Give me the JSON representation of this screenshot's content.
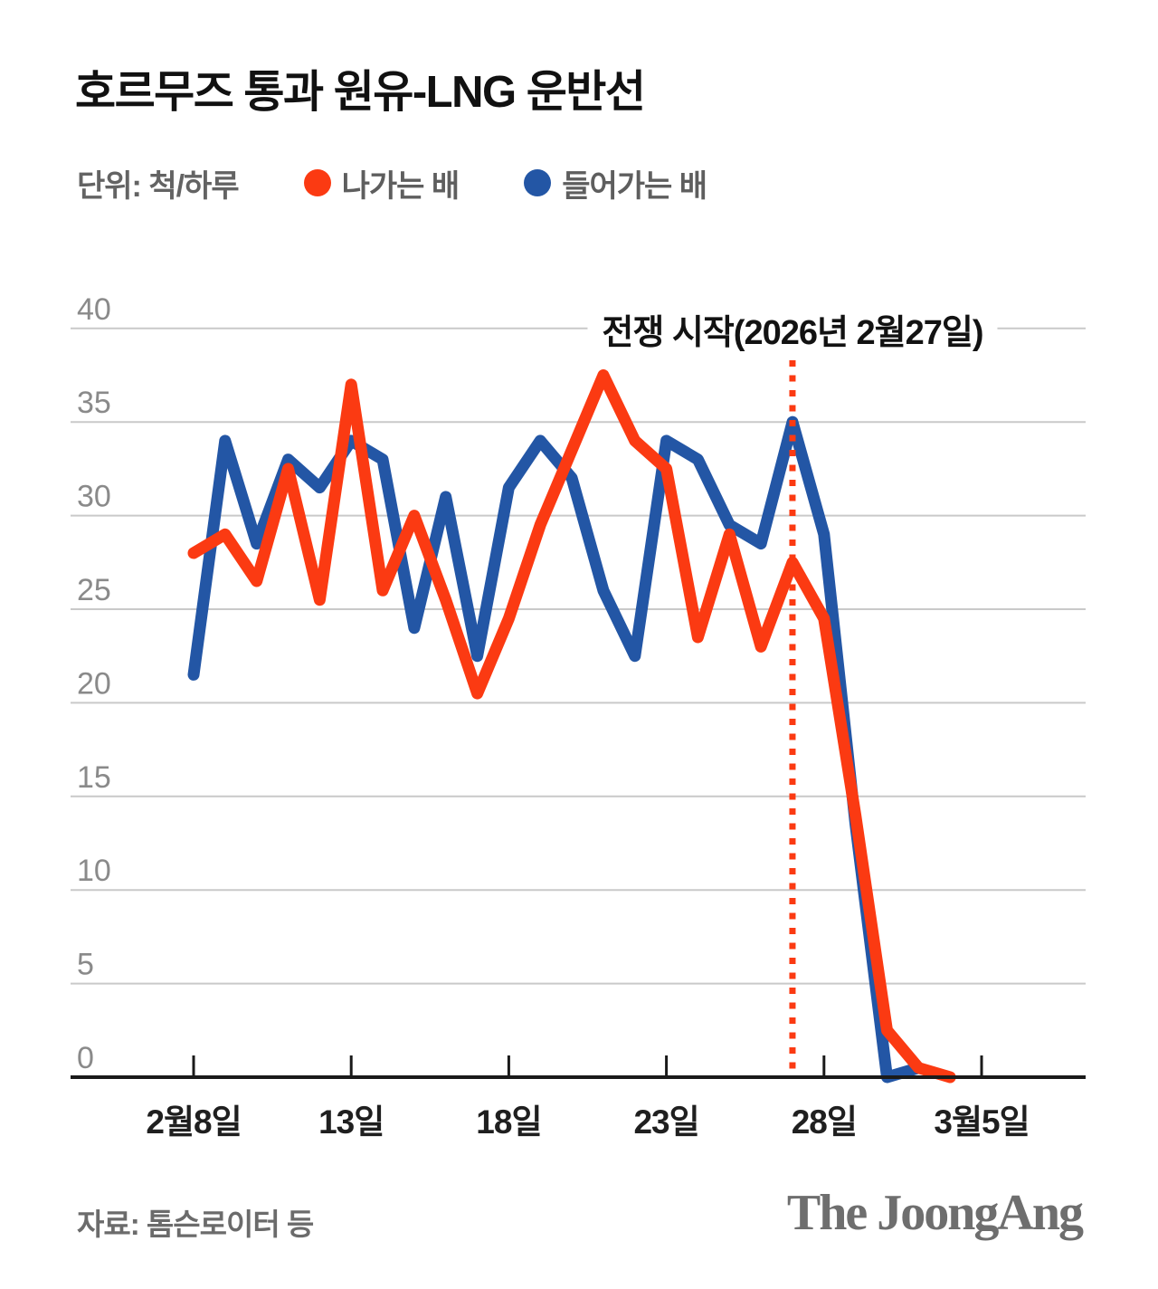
{
  "title": "호르무즈 통과 원유-LNG 운반선",
  "legend": {
    "unit_label": "단위: 척/하루",
    "items": [
      {
        "label": "나가는 배",
        "color": "#fb3a12"
      },
      {
        "label": "들어가는 배",
        "color": "#2356a5"
      }
    ]
  },
  "chart_data": {
    "type": "line",
    "title": "호르무즈 통과 원유-LNG 운반선",
    "unit": "척/하루",
    "ylim": [
      0,
      40
    ],
    "y_ticks": [
      0,
      5,
      10,
      15,
      20,
      25,
      30,
      35,
      40
    ],
    "grid": true,
    "legend_position": "top",
    "x_tick_labels": [
      {
        "label": "2월8일",
        "index": 0
      },
      {
        "label": "13일",
        "index": 5
      },
      {
        "label": "18일",
        "index": 10
      },
      {
        "label": "23일",
        "index": 15
      },
      {
        "label": "28일",
        "index": 20
      },
      {
        "label": "3월5일",
        "index": 25
      }
    ],
    "series": [
      {
        "name": "나가는 배",
        "color": "#fb3a12",
        "values": [
          28,
          29,
          26.5,
          32.5,
          25.5,
          37,
          26,
          30,
          25.5,
          20.5,
          24.5,
          29.5,
          33.5,
          37.5,
          34,
          32.5,
          23.5,
          29,
          23,
          27.5,
          24.5,
          14,
          2.5,
          0.5,
          0
        ]
      },
      {
        "name": "들어가는 배",
        "color": "#2356a5",
        "values": [
          21.5,
          34,
          28.5,
          33,
          31.5,
          34,
          33,
          24,
          31,
          22.5,
          31.5,
          34,
          32,
          26,
          22.5,
          34,
          33,
          29.5,
          28.5,
          35,
          29,
          13.5,
          0,
          0.5
        ]
      }
    ],
    "annotation": {
      "label": "전쟁 시작(2026년 2월27일)",
      "x_index": 19
    }
  },
  "footer": {
    "source": "자료: 톰슨로이터 등",
    "logo": "The JoongAng"
  }
}
